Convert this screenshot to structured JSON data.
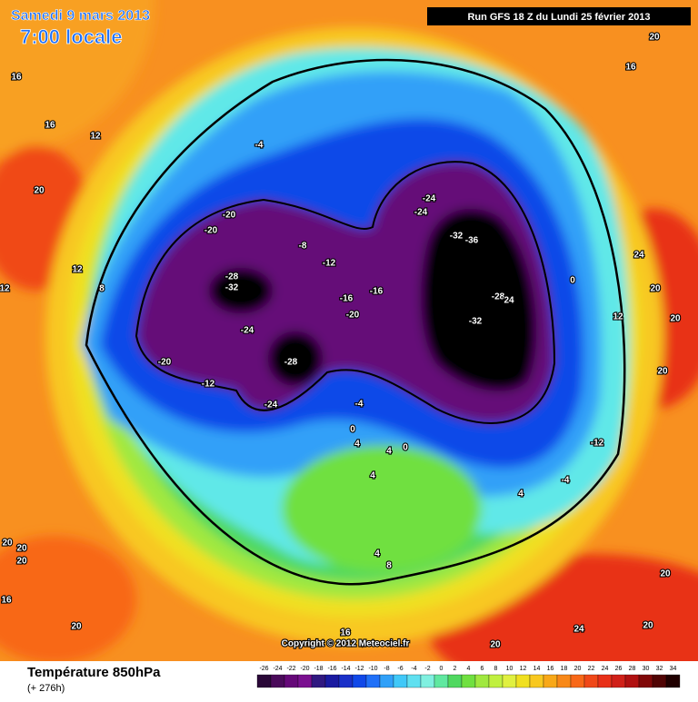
{
  "header": {
    "date": "Samedi 9 mars 2013",
    "time": "7:00 locale",
    "run": "Run GFS 18 Z du Lundi 25 février 2013"
  },
  "copyright": "Copyright © 2012 Meteociel.fr",
  "footer": {
    "title": "Température 850hPa",
    "lead": "(+ 276h)"
  },
  "colorbar": {
    "labels": [
      -26,
      -24,
      -22,
      -20,
      -18,
      -16,
      -14,
      -12,
      -10,
      -8,
      -6,
      -4,
      -2,
      0,
      2,
      4,
      6,
      8,
      10,
      12,
      14,
      16,
      18,
      20,
      22,
      24,
      26,
      28,
      30,
      32,
      34
    ],
    "colors": [
      "#2a0838",
      "#4a0a5a",
      "#650878",
      "#7a1090",
      "#301880",
      "#1a1aa0",
      "#1a30c8",
      "#1048e8",
      "#2070f8",
      "#30a0f8",
      "#40c8f8",
      "#60e0f0",
      "#80f0e0",
      "#60e8a0",
      "#50d860",
      "#70e040",
      "#a0e840",
      "#c0f040",
      "#e0f040",
      "#f0e020",
      "#f8c820",
      "#f8a818",
      "#f88818",
      "#f86818",
      "#f04818",
      "#e83018",
      "#d02018",
      "#b01010",
      "#800808",
      "#500404",
      "#200000"
    ]
  },
  "map_labels": [
    16,
    16,
    12,
    20,
    12,
    12,
    8,
    -4,
    -20,
    -20,
    -8,
    -12,
    -28,
    -32,
    -16,
    -16,
    -20,
    -24,
    -28,
    -20,
    -12,
    -24,
    -4,
    0,
    4,
    4,
    0,
    4,
    4,
    -4,
    -12,
    -24,
    -24,
    -32,
    -36,
    -28,
    24,
    -32,
    0,
    12,
    24,
    20,
    20,
    20,
    20,
    16,
    20,
    20,
    20,
    16,
    20,
    16,
    20,
    24,
    20,
    20,
    8,
    4
  ]
}
